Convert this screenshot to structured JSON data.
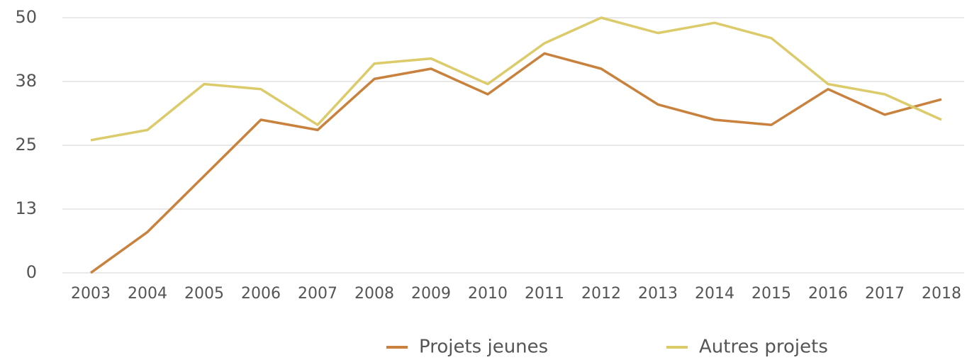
{
  "chart_data": {
    "type": "line",
    "categories": [
      "2003",
      "2004",
      "2005",
      "2006",
      "2007",
      "2008",
      "2009",
      "2010",
      "2011",
      "2012",
      "2013",
      "2014",
      "2015",
      "2016",
      "2017",
      "2018"
    ],
    "series": [
      {
        "name": "Projets jeunes",
        "color": "#c8823e",
        "values": [
          0,
          8,
          19,
          30,
          28,
          38,
          40,
          35,
          43,
          40,
          33,
          30,
          29,
          36,
          31,
          34
        ]
      },
      {
        "name": "Autres projets",
        "color": "#dccb6a",
        "values": [
          26,
          28,
          37,
          36,
          29,
          41,
          42,
          37,
          45,
          50,
          47,
          49,
          46,
          37,
          35,
          30
        ]
      }
    ],
    "ylim": [
      0,
      50
    ],
    "yticks": [
      0,
      {
        "value": 12.5,
        "label": "13"
      },
      25,
      {
        "value": 37.5,
        "label": "38"
      },
      50
    ],
    "grid": true,
    "legend": "bottom"
  }
}
